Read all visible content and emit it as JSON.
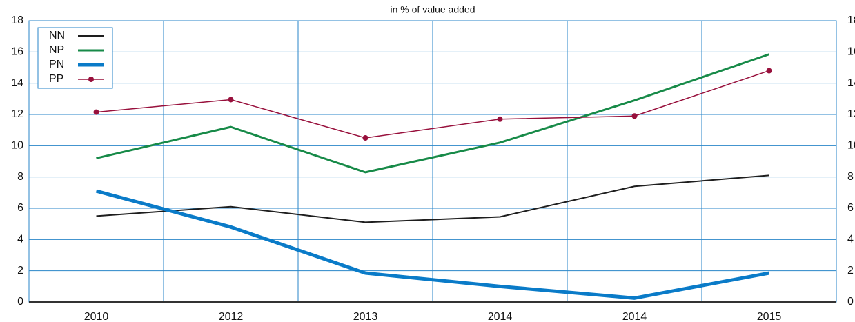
{
  "chart_data": {
    "type": "line",
    "subtitle": "in % of value added",
    "categories": [
      "2010",
      "2012",
      "2013",
      "2014",
      "2014",
      "2015"
    ],
    "series": [
      {
        "name": "NN",
        "color": "#1e1e1e",
        "width": 2,
        "values": [
          5.5,
          6.1,
          5.1,
          5.45,
          7.4,
          8.1
        ]
      },
      {
        "name": "NP",
        "color": "#178a48",
        "width": 3,
        "values": [
          9.2,
          11.2,
          8.3,
          10.2,
          12.9,
          15.85
        ]
      },
      {
        "name": "PN",
        "color": "#0a7bc8",
        "width": 5,
        "values": [
          7.1,
          4.8,
          1.85,
          1.0,
          0.25,
          1.85
        ]
      },
      {
        "name": "PP",
        "color": "#98103c",
        "width": 1.5,
        "marker": true,
        "values": [
          12.15,
          12.95,
          10.5,
          11.7,
          11.9,
          14.8
        ]
      }
    ],
    "ylim": [
      0,
      18
    ],
    "yticks": [
      0,
      2,
      4,
      6,
      8,
      10,
      12,
      14,
      16,
      18
    ],
    "grid": true,
    "legend": "top-left"
  }
}
